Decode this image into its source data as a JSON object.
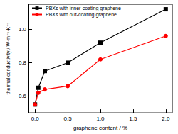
{
  "chart_data": {
    "type": "line",
    "x_label": "graphene content / %",
    "y_label": "thermal conductivity / W·m⁻¹·K⁻¹",
    "x": [
      0,
      0.05,
      0.15,
      0.5,
      1.0,
      2.0
    ],
    "series": [
      {
        "name": "PBXs with inner-coating graphene",
        "color": "#000000",
        "marker": "square",
        "line_style": "solid",
        "values": [
          0.55,
          0.65,
          0.75,
          0.8,
          0.92,
          1.12
        ]
      },
      {
        "name": "PBXs with out-coating graphene",
        "color": "#ff0000",
        "marker": "circle",
        "line_style": "solid",
        "values": [
          0.55,
          0.62,
          0.64,
          0.66,
          0.82,
          0.96
        ]
      }
    ],
    "xlim": [
      -0.1,
      2.1
    ],
    "xticks": [
      {
        "value": 0,
        "label": "0.0"
      },
      0.5,
      {
        "value": 1,
        "label": "1.0"
      },
      1.5,
      {
        "value": 2,
        "label": "2.0"
      }
    ],
    "ylim": [
      0.5,
      1.15
    ],
    "yticks": [
      0.6,
      0.8,
      {
        "value": 1,
        "label": "1.0"
      }
    ],
    "grid": false,
    "legend": "upper left"
  }
}
